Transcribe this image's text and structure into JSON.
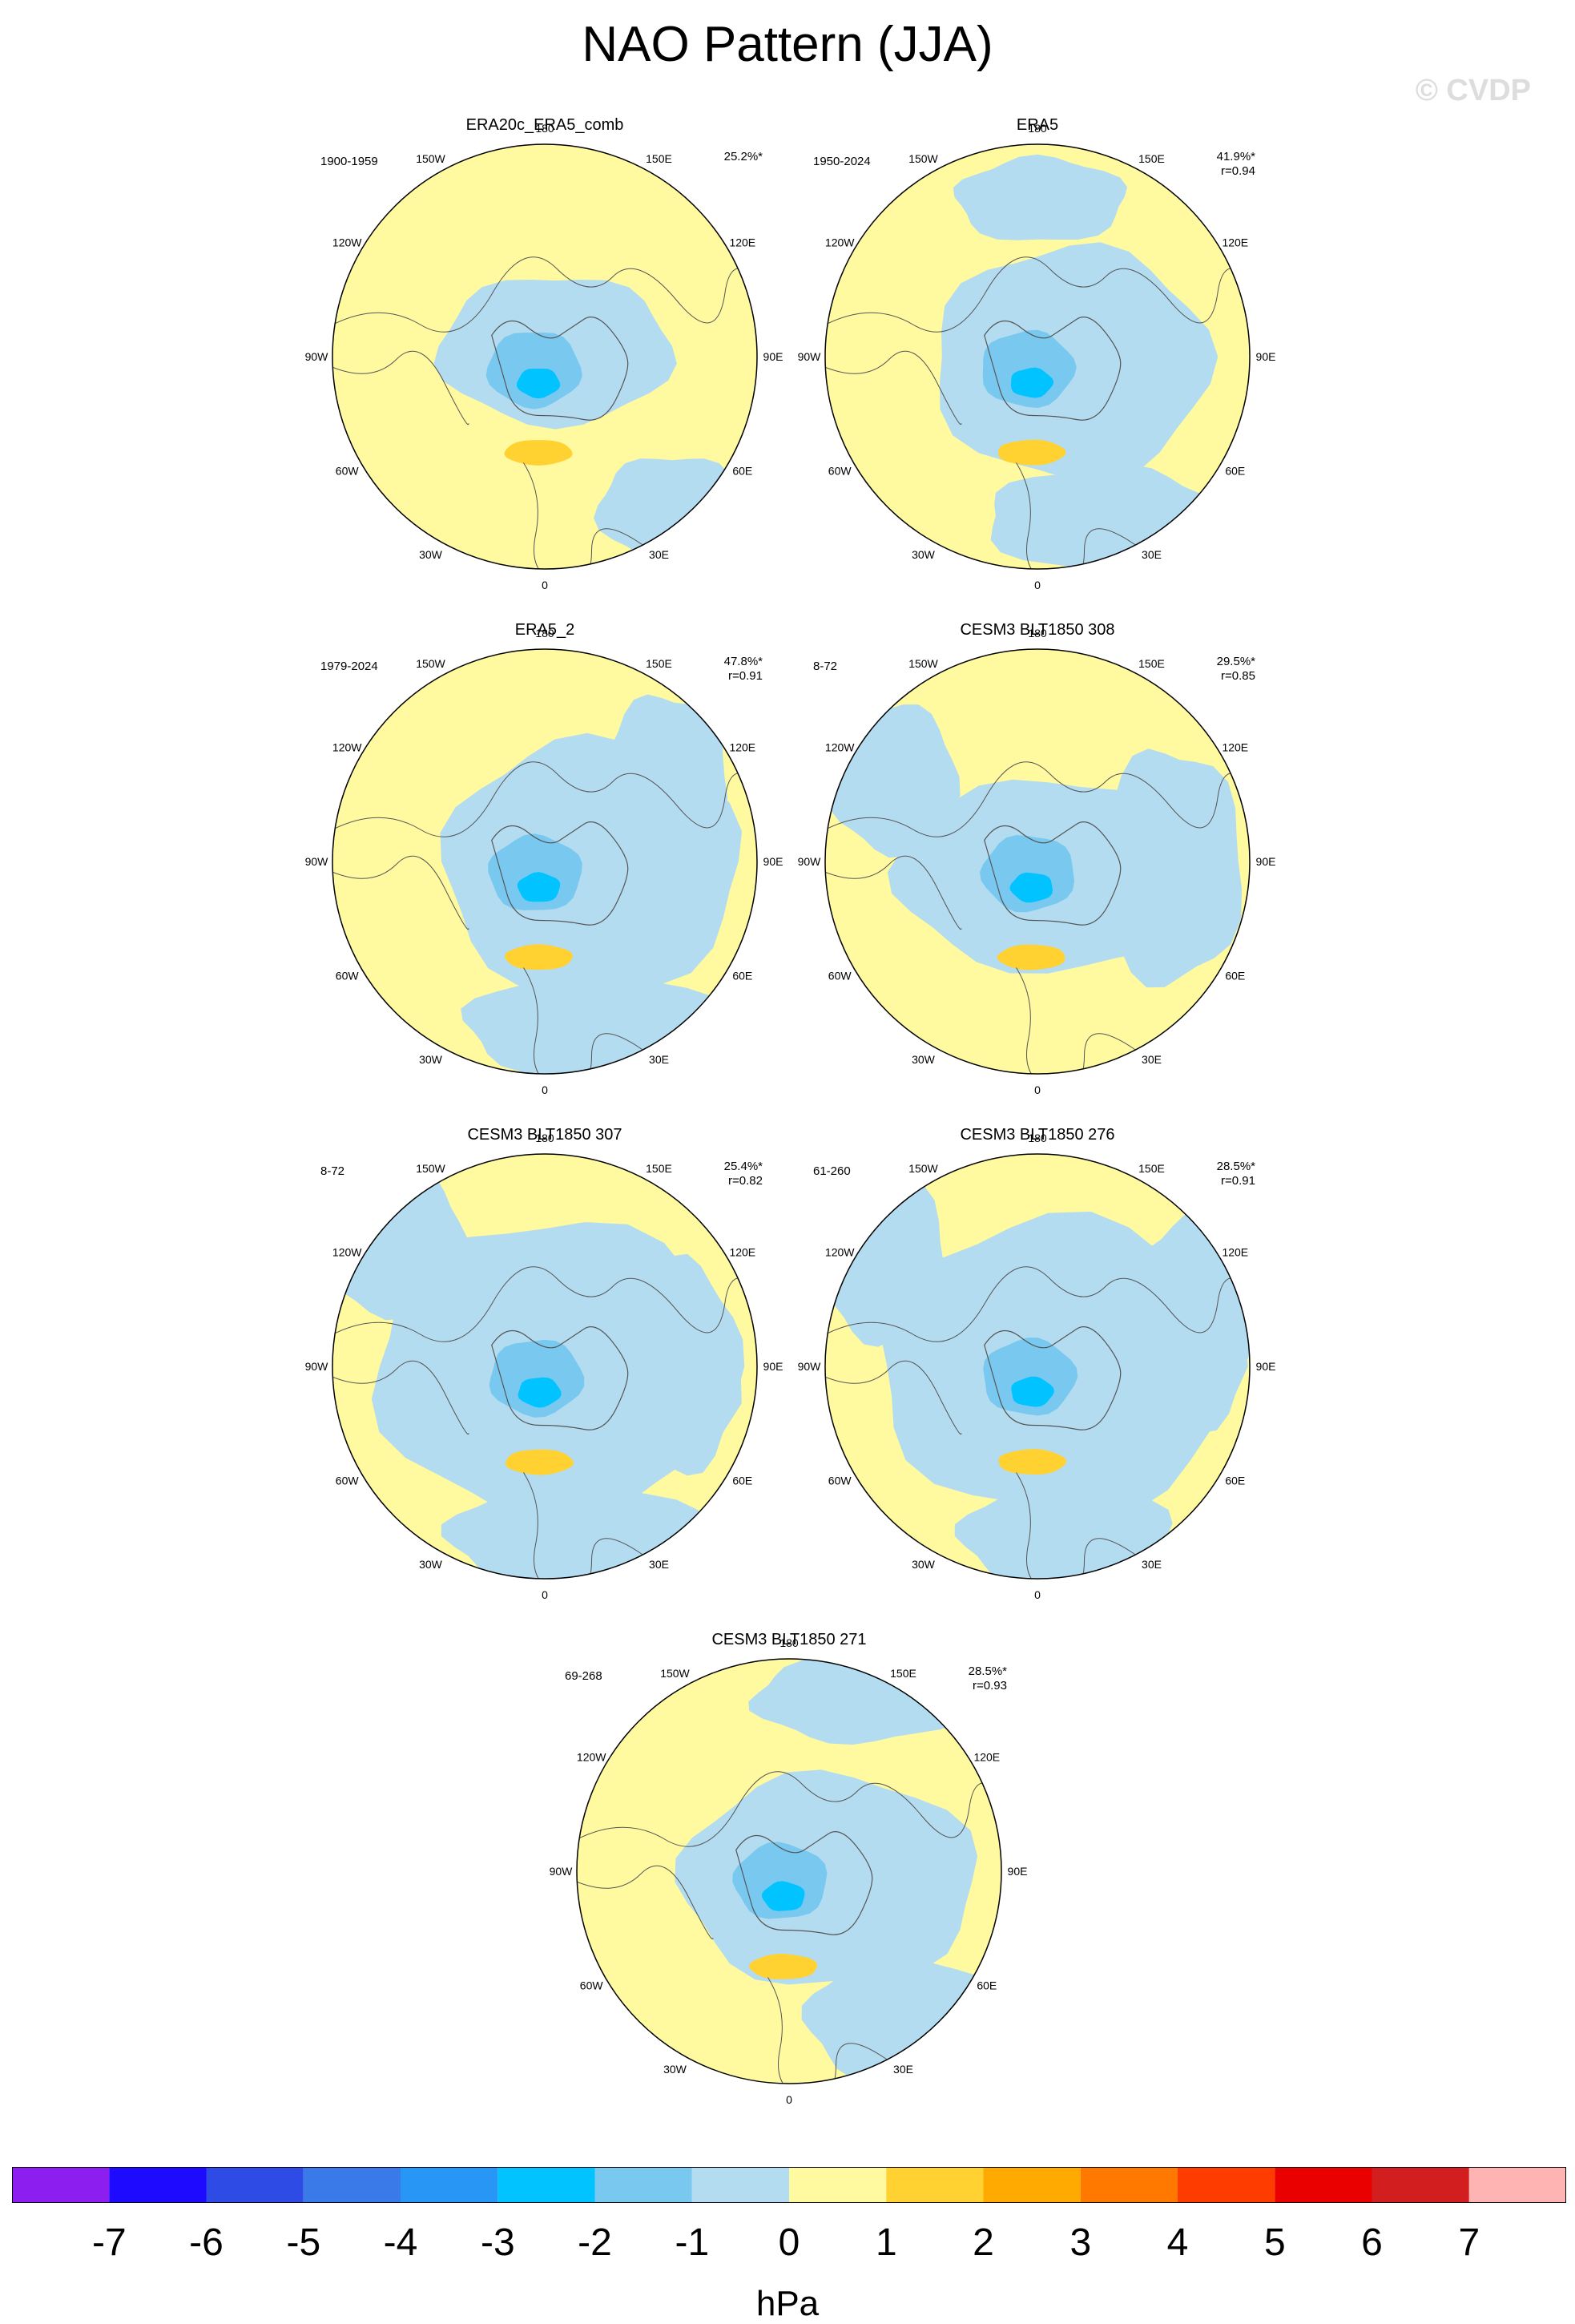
{
  "title": "NAO Pattern (JJA)",
  "watermark": "© CVDP",
  "lon_labels": [
    "180",
    "150E",
    "120E",
    "90E",
    "60E",
    "30E",
    "0",
    "30W",
    "60W",
    "90W",
    "120W",
    "150W"
  ],
  "panels": [
    {
      "title": "ERA20c_ERA5_comb",
      "years": "1900-1959",
      "pct": "25.2%*",
      "r": "",
      "variant": 0
    },
    {
      "title": "ERA5",
      "years": "1950-2024",
      "pct": "41.9%*",
      "r": "r=0.94",
      "variant": 1
    },
    {
      "title": "ERA5_2",
      "years": "1979-2024",
      "pct": "47.8%*",
      "r": "r=0.91",
      "variant": 2
    },
    {
      "title": "CESM3 BLT1850 308",
      "years": "8-72",
      "pct": "29.5%*",
      "r": "r=0.85",
      "variant": 3
    },
    {
      "title": "CESM3 BLT1850 307",
      "years": "8-72",
      "pct": "25.4%*",
      "r": "r=0.82",
      "variant": 4
    },
    {
      "title": "CESM3 BLT1850 276",
      "years": "61-260",
      "pct": "28.5%*",
      "r": "r=0.91",
      "variant": 5
    },
    {
      "title": "CESM3 BLT1850 271",
      "years": "69-268",
      "pct": "28.5%*",
      "r": "r=0.93",
      "variant": 6
    }
  ],
  "colorbar": {
    "unit": "hPa",
    "labels": [
      "-7",
      "-6",
      "-5",
      "-4",
      "-3",
      "-2",
      "-1",
      "0",
      "1",
      "2",
      "3",
      "4",
      "5",
      "6",
      "7"
    ],
    "colors": [
      "#8c1ef0",
      "#1e0aff",
      "#2e4be6",
      "#3a7ae8",
      "#2896f5",
      "#00c3ff",
      "#78c8f0",
      "#b4dcf0",
      "#fffaa0",
      "#ffd232",
      "#ffaa00",
      "#ff7800",
      "#ff3c00",
      "#eb0000",
      "#d21e1e",
      "#ffb4b4"
    ]
  }
}
